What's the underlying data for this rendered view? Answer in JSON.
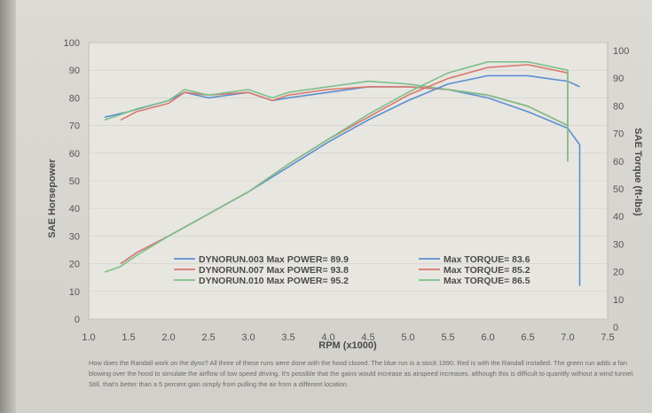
{
  "chart_data": {
    "type": "line",
    "xlabel": "RPM (x1000)",
    "ylabel_left": "SAE Horsepower",
    "ylabel_right": "SAE Torque (ft-lbs)",
    "xlim": [
      1.0,
      7.5
    ],
    "ylim": [
      0,
      100
    ],
    "x_ticks": [
      "1.0",
      "1.5",
      "2.0",
      "2.5",
      "3.0",
      "3.5",
      "4.0",
      "4.5",
      "5.0",
      "5.5",
      "6.0",
      "6.5",
      "7.0",
      "7.5"
    ],
    "y_ticks": [
      "0",
      "10",
      "20",
      "30",
      "40",
      "50",
      "60",
      "70",
      "80",
      "90",
      "100"
    ],
    "colors": {
      "blue": "#5b8fd1",
      "red": "#d9786f",
      "green": "#7cc08a"
    },
    "power_series": [
      {
        "name": "DYNORUN.003",
        "color": "blue",
        "x": [
          1.4,
          1.6,
          2.0,
          2.5,
          3.0,
          3.5,
          4.0,
          4.5,
          5.0,
          5.5,
          6.0,
          6.5,
          7.0,
          7.15
        ],
        "y": [
          20,
          24,
          30,
          38,
          46,
          55,
          64,
          72,
          79,
          85,
          88,
          88,
          86,
          84
        ]
      },
      {
        "name": "DYNORUN.007",
        "color": "red",
        "x": [
          1.4,
          1.6,
          2.0,
          2.5,
          3.0,
          3.5,
          4.0,
          4.5,
          5.0,
          5.5,
          6.0,
          6.5,
          7.0,
          7.0
        ],
        "y": [
          20,
          24,
          30,
          38,
          46,
          56,
          65,
          73,
          81,
          87,
          91,
          92,
          89,
          57
        ]
      },
      {
        "name": "DYNORUN.010",
        "color": "green",
        "x": [
          1.2,
          1.4,
          1.6,
          2.0,
          2.5,
          3.0,
          3.5,
          4.0,
          4.5,
          5.0,
          5.5,
          6.0,
          6.5,
          7.0,
          7.0
        ],
        "y": [
          17,
          19,
          23,
          30,
          38,
          46,
          56,
          65,
          74,
          82,
          89,
          93,
          93,
          90,
          57
        ]
      }
    ],
    "torque_series": [
      {
        "color": "blue",
        "x": [
          1.2,
          1.5,
          2.0,
          2.2,
          2.5,
          3.0,
          3.3,
          3.5,
          4.0,
          4.5,
          5.0,
          5.5,
          6.0,
          6.5,
          7.0,
          7.15,
          7.15
        ],
        "y": [
          73,
          75,
          79,
          82,
          80,
          82,
          79,
          80,
          82,
          84,
          84,
          83,
          80,
          75,
          69,
          63,
          12
        ]
      },
      {
        "color": "red",
        "x": [
          1.4,
          1.6,
          2.0,
          2.2,
          2.5,
          3.0,
          3.3,
          3.5,
          4.0,
          4.5,
          5.0,
          5.5,
          6.0,
          6.5,
          7.0
        ],
        "y": [
          72,
          75,
          78,
          82,
          81,
          82,
          79,
          81,
          83,
          84,
          84,
          83,
          81,
          77,
          70
        ]
      },
      {
        "color": "green",
        "x": [
          1.2,
          1.4,
          1.6,
          2.0,
          2.2,
          2.5,
          3.0,
          3.3,
          3.5,
          4.0,
          4.5,
          5.0,
          5.5,
          6.0,
          6.5,
          7.0
        ],
        "y": [
          72,
          74,
          76,
          79,
          83,
          81,
          83,
          80,
          82,
          84,
          86,
          85,
          83,
          81,
          77,
          70
        ]
      }
    ],
    "legend": {
      "power": [
        {
          "label": "DYNORUN.003  Max POWER= 89.9",
          "color": "blue"
        },
        {
          "label": "DYNORUN.007  Max POWER= 93.8",
          "color": "red"
        },
        {
          "label": "DYNORUN.010  Max POWER= 95.2",
          "color": "green"
        }
      ],
      "torque": [
        {
          "label": "Max TORQUE= 83.6",
          "color": "blue"
        },
        {
          "label": "Max TORQUE= 85.2",
          "color": "red"
        },
        {
          "label": "Max TORQUE= 86.5",
          "color": "green"
        }
      ]
    }
  },
  "caption": "How does the Randall work on the dyno? All three of these runs were done with the hood closed. The blue run is a stock 1990. Red is with the Randall installed. The green run adds a fan blowing over the hood to simulate the airflow of low speed driving. It's possible that the gains would increase as airspeed increases, although this is difficult to quantify without a wind tunnel. Still, that's better than a 5 percent gain simply from pulling the air from a different location."
}
